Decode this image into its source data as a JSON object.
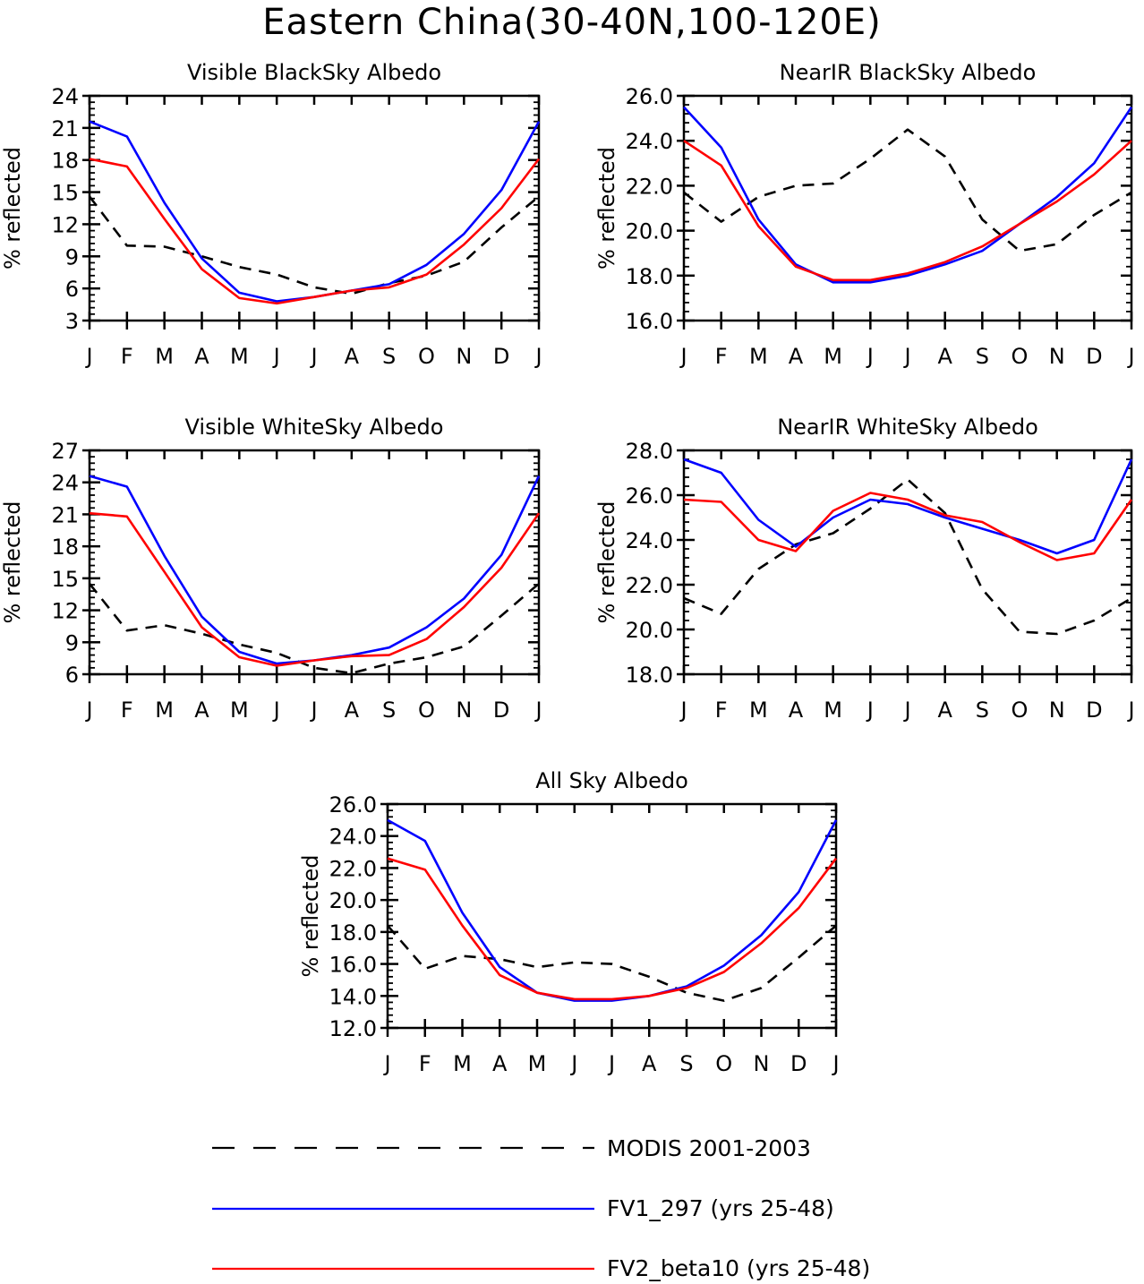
{
  "title": "Eastern China(30-40N,100-120E)",
  "colors": {
    "modis": "#000000",
    "fv1": "#0000ff",
    "fv2": "#ff0000",
    "axis": "#000000"
  },
  "chart_data": [
    {
      "type": "line",
      "title": "Visible BlackSky Albedo",
      "ylabel": "% reflected",
      "categories": [
        "J",
        "F",
        "M",
        "A",
        "M",
        "J",
        "J",
        "A",
        "S",
        "O",
        "N",
        "D",
        "J"
      ],
      "ylim": [
        3,
        24
      ],
      "yticks": [
        "3",
        "6",
        "9",
        "12",
        "15",
        "18",
        "21",
        "24"
      ],
      "series": [
        {
          "name": "MODIS 2001-2003",
          "style": "dashed",
          "values": [
            14.6,
            10.0,
            9.9,
            9.0,
            8.0,
            7.3,
            6.1,
            5.5,
            6.5,
            7.2,
            8.5,
            11.7,
            14.6
          ]
        },
        {
          "name": "FV1_297 (yrs 25-48)",
          "style": "solid",
          "values": [
            21.6,
            20.2,
            14.0,
            8.8,
            5.6,
            4.8,
            5.2,
            5.8,
            6.4,
            8.2,
            11.1,
            15.2,
            21.6
          ]
        },
        {
          "name": "FV2_beta10 (yrs 25-48)",
          "style": "solid",
          "values": [
            18.1,
            17.4,
            12.5,
            7.8,
            5.1,
            4.6,
            5.2,
            5.8,
            6.1,
            7.3,
            10.1,
            13.5,
            18.1
          ]
        }
      ]
    },
    {
      "type": "line",
      "title": "NearIR BlackSky Albedo",
      "ylabel": "% reflected",
      "categories": [
        "J",
        "F",
        "M",
        "A",
        "M",
        "J",
        "J",
        "A",
        "S",
        "O",
        "N",
        "D",
        "J"
      ],
      "ylim": [
        16,
        26
      ],
      "yticks": [
        "16.0",
        "18.0",
        "20.0",
        "22.0",
        "24.0",
        "26.0"
      ],
      "series": [
        {
          "name": "MODIS 2001-2003",
          "style": "dashed",
          "values": [
            21.7,
            20.4,
            21.5,
            22.0,
            22.1,
            23.2,
            24.5,
            23.3,
            20.5,
            19.1,
            19.4,
            20.7,
            21.7
          ]
        },
        {
          "name": "FV1_297 (yrs 25-48)",
          "style": "solid",
          "values": [
            25.5,
            23.7,
            20.5,
            18.5,
            17.7,
            17.7,
            18.0,
            18.5,
            19.1,
            20.3,
            21.5,
            23.0,
            25.5
          ]
        },
        {
          "name": "FV2_beta10 (yrs 25-48)",
          "style": "solid",
          "values": [
            24.0,
            22.9,
            20.2,
            18.4,
            17.8,
            17.8,
            18.1,
            18.6,
            19.3,
            20.3,
            21.3,
            22.5,
            24.0
          ]
        }
      ]
    },
    {
      "type": "line",
      "title": "Visible WhiteSky Albedo",
      "ylabel": "% reflected",
      "categories": [
        "J",
        "F",
        "M",
        "A",
        "M",
        "J",
        "J",
        "A",
        "S",
        "O",
        "N",
        "D",
        "J"
      ],
      "ylim": [
        6,
        27
      ],
      "yticks": [
        "6",
        "9",
        "12",
        "15",
        "18",
        "21",
        "24",
        "27"
      ],
      "series": [
        {
          "name": "MODIS 2001-2003",
          "style": "dashed",
          "values": [
            14.5,
            10.1,
            10.6,
            9.8,
            8.8,
            8.0,
            6.6,
            6.1,
            7.0,
            7.6,
            8.6,
            11.5,
            14.5
          ]
        },
        {
          "name": "FV1_297 (yrs 25-48)",
          "style": "solid",
          "values": [
            24.6,
            23.6,
            17.1,
            11.4,
            8.1,
            7.0,
            7.3,
            7.8,
            8.5,
            10.4,
            13.1,
            17.2,
            24.6
          ]
        },
        {
          "name": "FV2_beta10 (yrs 25-48)",
          "style": "solid",
          "values": [
            21.1,
            20.8,
            15.6,
            10.4,
            7.6,
            6.8,
            7.3,
            7.7,
            7.8,
            9.3,
            12.3,
            16.0,
            21.1
          ]
        }
      ]
    },
    {
      "type": "line",
      "title": "NearIR WhiteSky Albedo",
      "ylabel": "% reflected",
      "categories": [
        "J",
        "F",
        "M",
        "A",
        "M",
        "J",
        "J",
        "A",
        "S",
        "O",
        "N",
        "D",
        "J"
      ],
      "ylim": [
        18,
        28
      ],
      "yticks": [
        "18.0",
        "20.0",
        "22.0",
        "24.0",
        "26.0",
        "28.0"
      ],
      "series": [
        {
          "name": "MODIS 2001-2003",
          "style": "dashed",
          "values": [
            21.4,
            20.7,
            22.7,
            23.8,
            24.3,
            25.4,
            26.7,
            25.2,
            21.8,
            19.9,
            19.8,
            20.4,
            21.4
          ]
        },
        {
          "name": "FV1_297 (yrs 25-48)",
          "style": "solid",
          "values": [
            27.6,
            27.0,
            24.9,
            23.7,
            25.0,
            25.8,
            25.6,
            25.0,
            24.5,
            24.0,
            23.4,
            24.0,
            27.6
          ]
        },
        {
          "name": "FV2_beta10 (yrs 25-48)",
          "style": "solid",
          "values": [
            25.8,
            25.7,
            24.0,
            23.5,
            25.3,
            26.1,
            25.8,
            25.1,
            24.8,
            23.9,
            23.1,
            23.4,
            25.8
          ]
        }
      ]
    },
    {
      "type": "line",
      "title": "All Sky Albedo",
      "ylabel": "% reflected",
      "categories": [
        "J",
        "F",
        "M",
        "A",
        "M",
        "J",
        "J",
        "A",
        "S",
        "O",
        "N",
        "D",
        "J"
      ],
      "ylim": [
        12,
        26
      ],
      "yticks": [
        "12.0",
        "14.0",
        "16.0",
        "18.0",
        "20.0",
        "22.0",
        "24.0",
        "26.0"
      ],
      "series": [
        {
          "name": "MODIS 2001-2003",
          "style": "dashed",
          "values": [
            18.4,
            15.7,
            16.5,
            16.3,
            15.8,
            16.1,
            16.0,
            15.2,
            14.2,
            13.7,
            14.5,
            16.4,
            18.4
          ]
        },
        {
          "name": "FV1_297 (yrs 25-48)",
          "style": "solid",
          "values": [
            25.0,
            23.7,
            19.2,
            15.8,
            14.2,
            13.7,
            13.7,
            14.0,
            14.6,
            15.9,
            17.8,
            20.5,
            25.0
          ]
        },
        {
          "name": "FV2_beta10 (yrs 25-48)",
          "style": "solid",
          "values": [
            22.6,
            21.9,
            18.4,
            15.3,
            14.2,
            13.8,
            13.8,
            14.0,
            14.5,
            15.5,
            17.3,
            19.5,
            22.6
          ]
        }
      ]
    }
  ],
  "legend": [
    {
      "label": "MODIS 2001-2003",
      "style": "dashed",
      "color": "#000000"
    },
    {
      "label": "FV1_297 (yrs 25-48)",
      "style": "solid",
      "color": "#0000ff"
    },
    {
      "label": "FV2_beta10 (yrs 25-48)",
      "style": "solid",
      "color": "#ff0000"
    }
  ]
}
